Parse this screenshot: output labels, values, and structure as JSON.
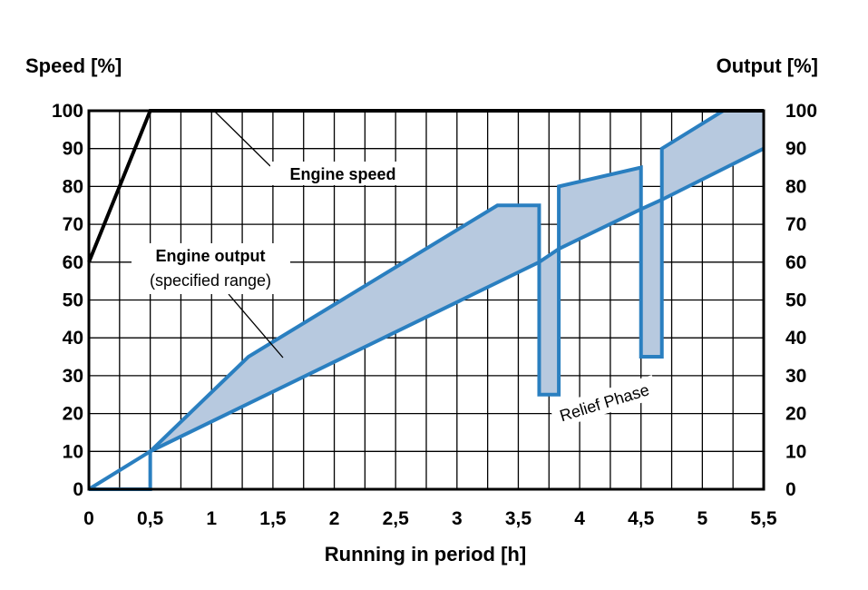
{
  "chart_data": {
    "type": "line",
    "title": "",
    "xlabel": "Running in period [h]",
    "ylabel_left": "Speed [%]",
    "ylabel_right": "Output [%]",
    "xlim": [
      0,
      5.5
    ],
    "ylim": [
      0,
      100
    ],
    "x_ticks": [
      "0",
      "0,5",
      "1",
      "1,5",
      "2",
      "2,5",
      "3",
      "3,5",
      "4",
      "4,5",
      "5",
      "5,5"
    ],
    "x_tick_values": [
      0,
      0.5,
      1,
      1.5,
      2,
      2.5,
      3,
      3.5,
      4,
      4.5,
      5,
      5.5
    ],
    "y_ticks": [
      "0",
      "10",
      "20",
      "30",
      "40",
      "50",
      "60",
      "70",
      "80",
      "90",
      "100"
    ],
    "y_tick_values": [
      0,
      10,
      20,
      30,
      40,
      50,
      60,
      70,
      80,
      90,
      100
    ],
    "grid": true,
    "x_grid_step": 0.25,
    "series": [
      {
        "name": "Engine speed",
        "color": "#000000",
        "x": [
          0,
          0.5,
          5.5
        ],
        "y": [
          60,
          100,
          100
        ]
      },
      {
        "name": "Engine output upper",
        "color": "#1f77b4",
        "x": [
          0,
          0.5,
          1.3,
          3.33,
          3.67,
          3.67,
          3.83,
          3.83,
          4.5,
          4.5,
          4.67,
          4.67,
          5.17,
          5.5
        ],
        "y": [
          0,
          10,
          35,
          75,
          75,
          25,
          25,
          80,
          85,
          35,
          35,
          90,
          100,
          100
        ]
      },
      {
        "name": "Engine output lower",
        "color": "#1f77b4",
        "x": [
          0,
          0.5,
          0.5,
          3.67,
          3.83,
          4.5,
          4.67,
          5.5
        ],
        "y": [
          0,
          0,
          10,
          60,
          63.5,
          74,
          76.5,
          90
        ]
      }
    ],
    "annotations": {
      "engine_speed": "Engine speed",
      "engine_output": "Engine output",
      "specified_range": "(specified range)",
      "relief_phase": "Relief Phase"
    },
    "colors": {
      "output_line": "#2a7fc0",
      "output_fill": "#b7c9df",
      "speed_line": "#000000",
      "grid": "#000000"
    }
  }
}
